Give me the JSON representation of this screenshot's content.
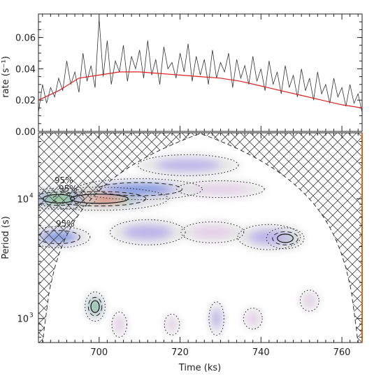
{
  "chart_data": [
    {
      "type": "line",
      "panel": "top",
      "xlabel": "",
      "ylabel": "rate (s⁻¹)",
      "xlim": [
        685,
        765
      ],
      "ylim": [
        0.0,
        0.075
      ],
      "yticks": [
        0.0,
        0.02,
        0.04,
        0.06
      ],
      "ytick_labels": [
        "0.00",
        "0.02",
        "0.04",
        "0.06"
      ],
      "colors": {
        "raw": "#333333",
        "smooth": "#e02020"
      },
      "series": [
        {
          "key": "raw",
          "x": [
            685,
            686,
            687,
            688,
            689,
            690,
            691,
            692,
            693,
            694,
            695,
            696,
            697,
            698,
            699,
            700,
            701,
            702,
            703,
            704,
            705,
            706,
            707,
            708,
            709,
            710,
            711,
            712,
            713,
            714,
            715,
            716,
            717,
            718,
            719,
            720,
            721,
            722,
            723,
            724,
            725,
            726,
            727,
            728,
            729,
            730,
            731,
            732,
            733,
            734,
            735,
            736,
            737,
            738,
            739,
            740,
            741,
            742,
            743,
            744,
            745,
            746,
            747,
            748,
            749,
            750,
            751,
            752,
            753,
            754,
            755,
            756,
            757,
            758,
            759,
            760,
            761,
            762,
            763,
            764,
            765
          ],
          "values": [
            0.012,
            0.03,
            0.018,
            0.028,
            0.022,
            0.034,
            0.026,
            0.045,
            0.03,
            0.038,
            0.025,
            0.05,
            0.032,
            0.042,
            0.028,
            0.072,
            0.035,
            0.058,
            0.03,
            0.045,
            0.038,
            0.055,
            0.032,
            0.048,
            0.04,
            0.052,
            0.034,
            0.058,
            0.036,
            0.046,
            0.03,
            0.054,
            0.04,
            0.044,
            0.034,
            0.05,
            0.038,
            0.056,
            0.032,
            0.048,
            0.036,
            0.046,
            0.03,
            0.052,
            0.034,
            0.044,
            0.038,
            0.05,
            0.028,
            0.046,
            0.034,
            0.042,
            0.03,
            0.048,
            0.032,
            0.04,
            0.026,
            0.045,
            0.03,
            0.038,
            0.024,
            0.042,
            0.028,
            0.036,
            0.022,
            0.04,
            0.026,
            0.034,
            0.02,
            0.038,
            0.024,
            0.03,
            0.018,
            0.034,
            0.022,
            0.028,
            0.016,
            0.03,
            0.018,
            0.024,
            0.012
          ]
        },
        {
          "key": "smooth",
          "x": [
            685,
            690,
            695,
            700,
            705,
            710,
            715,
            720,
            725,
            730,
            735,
            740,
            745,
            750,
            755,
            760,
            765
          ],
          "values": [
            0.02,
            0.026,
            0.034,
            0.036,
            0.038,
            0.038,
            0.037,
            0.036,
            0.035,
            0.034,
            0.032,
            0.029,
            0.026,
            0.023,
            0.02,
            0.017,
            0.015
          ]
        }
      ]
    },
    {
      "type": "heatmap",
      "panel": "bottom",
      "xlabel": "Time (ks)",
      "ylabel": "Period (s)",
      "xlim": [
        685,
        765
      ],
      "ylim_log10": [
        2.8,
        4.55
      ],
      "log_y": true,
      "xticks": [
        700,
        720,
        740,
        760
      ],
      "xtick_labels": [
        "700",
        "720",
        "740",
        "760"
      ],
      "yticks_log10": [
        3,
        4
      ],
      "ytick_base": "10",
      "ytick_exps": [
        "3",
        "4"
      ],
      "contour_labels": [
        "95%",
        "95%",
        "95%"
      ],
      "colors": {
        "cone_edge": "#333333",
        "right_edge": "#d26a1a"
      },
      "blobs": [
        {
          "t": 700,
          "logp": 4.0,
          "w": 11,
          "h": 0.055,
          "level": 1.0
        },
        {
          "t": 690,
          "logp": 4.0,
          "w": 6,
          "h": 0.05,
          "level": 0.55
        },
        {
          "t": 710,
          "logp": 4.08,
          "w": 10,
          "h": 0.05,
          "level": 0.35
        },
        {
          "t": 722,
          "logp": 4.28,
          "w": 8,
          "h": 0.05,
          "level": 0.22
        },
        {
          "t": 730,
          "logp": 4.08,
          "w": 7,
          "h": 0.04,
          "level": 0.18
        },
        {
          "t": 690,
          "logp": 3.68,
          "w": 5,
          "h": 0.05,
          "level": 0.42
        },
        {
          "t": 712,
          "logp": 3.72,
          "w": 6,
          "h": 0.06,
          "level": 0.2
        },
        {
          "t": 728,
          "logp": 3.72,
          "w": 5,
          "h": 0.05,
          "level": 0.18
        },
        {
          "t": 746,
          "logp": 3.67,
          "w": 3,
          "h": 0.05,
          "level": 0.5
        },
        {
          "t": 742,
          "logp": 3.68,
          "w": 5,
          "h": 0.06,
          "level": 0.22
        },
        {
          "t": 699,
          "logp": 3.1,
          "w": 1.6,
          "h": 0.07,
          "level": 0.6
        },
        {
          "t": 729,
          "logp": 3.0,
          "w": 1.2,
          "h": 0.08,
          "level": 0.28
        },
        {
          "t": 705,
          "logp": 2.95,
          "w": 1.2,
          "h": 0.06,
          "level": 0.18
        },
        {
          "t": 718,
          "logp": 2.95,
          "w": 1.2,
          "h": 0.05,
          "level": 0.16
        },
        {
          "t": 738,
          "logp": 3.0,
          "w": 1.5,
          "h": 0.05,
          "level": 0.16
        },
        {
          "t": 752,
          "logp": 3.15,
          "w": 1.5,
          "h": 0.05,
          "level": 0.15
        }
      ]
    }
  ]
}
